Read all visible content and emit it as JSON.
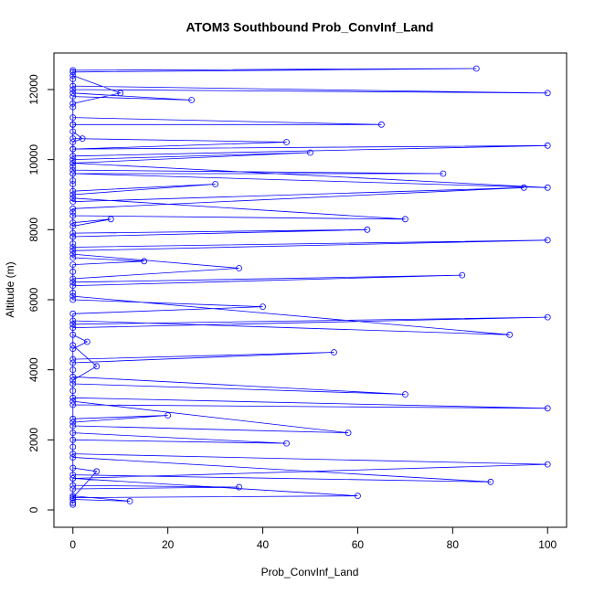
{
  "chart_data": {
    "type": "line",
    "markers": "open-circle",
    "title": "ATOM3 Southbound Prob_ConvInf_Land",
    "x_label": "Prob_ConvInf_Land",
    "y_label": "Altitude (m)",
    "color": "#0000ff",
    "xlim": [
      -4,
      104
    ],
    "ylim": [
      -496,
      13043
    ],
    "xticks": [
      0,
      20,
      40,
      60,
      80,
      100
    ],
    "yticks": [
      0,
      2000,
      4000,
      6000,
      8000,
      10000,
      12000
    ],
    "x": [
      0,
      0,
      0,
      12,
      0,
      0,
      35,
      0,
      0,
      60,
      0,
      5,
      0,
      0,
      88,
      0,
      0,
      0,
      45,
      0,
      0,
      20,
      0,
      0,
      100,
      0,
      0,
      0,
      70,
      0,
      0,
      0,
      55,
      0,
      0,
      3,
      0,
      0,
      100,
      0,
      0,
      40,
      0,
      0,
      0,
      82,
      0,
      0,
      0,
      15,
      0,
      0,
      100,
      0,
      0,
      0,
      62,
      0,
      0,
      8,
      0,
      0,
      0,
      95,
      0,
      0,
      30,
      0,
      0,
      0,
      78,
      0,
      0,
      0,
      50,
      0,
      0,
      100,
      0,
      0,
      2,
      0,
      0,
      65,
      0,
      0,
      0,
      25,
      0,
      0,
      100,
      0,
      0,
      0,
      85,
      0,
      0,
      10,
      0,
      0,
      0,
      45,
      0,
      0,
      100,
      0,
      0,
      0,
      70,
      0,
      0,
      0,
      35,
      0,
      0,
      92,
      0,
      0,
      5,
      0,
      0,
      58,
      0,
      0,
      100,
      0
    ],
    "y": [
      150,
      200,
      400,
      250,
      300,
      600,
      650,
      700,
      900,
      400,
      350,
      1100,
      1200,
      1500,
      800,
      1000,
      1800,
      2000,
      1900,
      2200,
      2500,
      2700,
      2600,
      3000,
      2900,
      3200,
      3400,
      3600,
      3300,
      3800,
      4000,
      4200,
      4500,
      4300,
      4600,
      4800,
      5000,
      5200,
      5500,
      5300,
      5600,
      5800,
      6000,
      6200,
      6400,
      6700,
      6500,
      6800,
      7000,
      7100,
      7200,
      7400,
      7700,
      7500,
      7600,
      7800,
      8000,
      7900,
      8100,
      8300,
      8200,
      8500,
      8600,
      9200,
      8800,
      9000,
      9300,
      9100,
      9400,
      9600,
      9600,
      9700,
      9800,
      9900,
      10200,
      10000,
      10100,
      10400,
      10300,
      10500,
      10600,
      10800,
      11000,
      11000,
      11200,
      11500,
      11800,
      11700,
      11900,
      12100,
      11900,
      12000,
      12300,
      12500,
      12600,
      12550,
      12400,
      11900,
      11600,
      11000,
      10600,
      10500,
      10300,
      9900,
      9200,
      9600,
      9300,
      8900,
      8300,
      8400,
      7800,
      7300,
      6900,
      6600,
      6100,
      5000,
      5400,
      4700,
      4100,
      3700,
      3100,
      2200,
      2400,
      1600,
      1300,
      900
    ]
  }
}
